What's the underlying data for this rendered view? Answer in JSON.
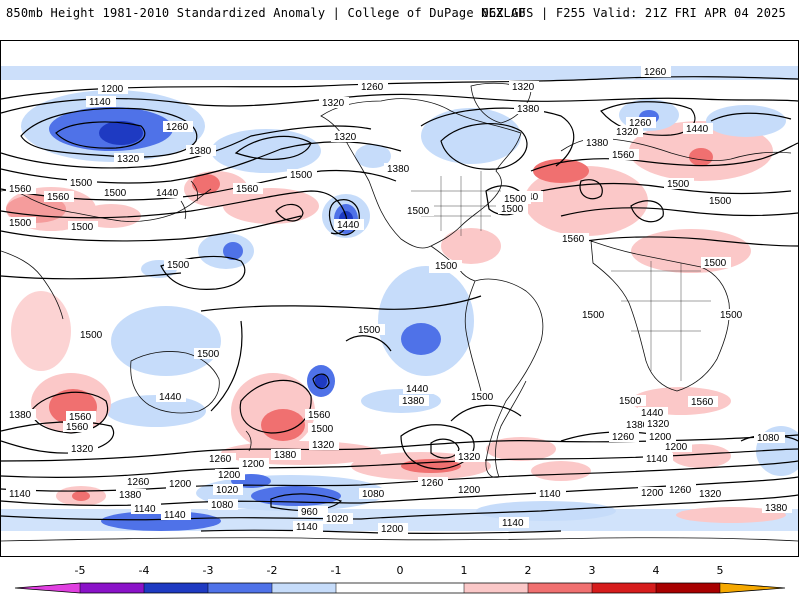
{
  "header": {
    "left_title": "850mb Height 1981-2010 Standardized Anomaly | College of DuPage NEXLAB",
    "right_title": "06Z GFS | F255 Valid: 21Z FRI APR 04 2025"
  },
  "map": {
    "projection": "global-cylindrical",
    "field": "850mb geopotential height (dam) contours with standardized anomaly shading",
    "contour_labels": [
      {
        "id": "c1",
        "text": "1200"
      },
      {
        "id": "c2",
        "text": "1140"
      },
      {
        "id": "c3",
        "text": "1260"
      },
      {
        "id": "c4",
        "text": "1320"
      },
      {
        "id": "c5",
        "text": "1320"
      },
      {
        "id": "c6",
        "text": "1380"
      },
      {
        "id": "c7",
        "text": "1260"
      },
      {
        "id": "c8",
        "text": "1320"
      },
      {
        "id": "c9",
        "text": "1380"
      },
      {
        "id": "c10",
        "text": "1260"
      },
      {
        "id": "c11",
        "text": "1320"
      },
      {
        "id": "c12",
        "text": "1260"
      },
      {
        "id": "c13",
        "text": "1440"
      },
      {
        "id": "c14",
        "text": "1380"
      },
      {
        "id": "c15",
        "text": "1560"
      },
      {
        "id": "c16",
        "text": "1500"
      },
      {
        "id": "c17",
        "text": "1440"
      },
      {
        "id": "c18",
        "text": "1560"
      },
      {
        "id": "c19",
        "text": "1500"
      },
      {
        "id": "c20",
        "text": "1440"
      },
      {
        "id": "c21",
        "text": "1500"
      },
      {
        "id": "c22",
        "text": "1500"
      },
      {
        "id": "c23",
        "text": "1440"
      },
      {
        "id": "c24",
        "text": "1560"
      },
      {
        "id": "c25",
        "text": "1500"
      },
      {
        "id": "c26",
        "text": "1500"
      },
      {
        "id": "c27",
        "text": "1560"
      },
      {
        "id": "c28",
        "text": "1500"
      },
      {
        "id": "c29",
        "text": "1500"
      },
      {
        "id": "c30",
        "text": "1500"
      },
      {
        "id": "c31",
        "text": "1500"
      },
      {
        "id": "c32",
        "text": "1500"
      },
      {
        "id": "c33",
        "text": "1500"
      },
      {
        "id": "c34",
        "text": "1500"
      },
      {
        "id": "c35",
        "text": "1500"
      },
      {
        "id": "c36",
        "text": "1500"
      },
      {
        "id": "c37",
        "text": "1500"
      },
      {
        "id": "c38",
        "text": "1560"
      },
      {
        "id": "c39",
        "text": "1380"
      },
      {
        "id": "c40",
        "text": "1320"
      },
      {
        "id": "c41",
        "text": "1440"
      },
      {
        "id": "c42",
        "text": "1560"
      },
      {
        "id": "c43",
        "text": "1500"
      },
      {
        "id": "c44",
        "text": "1380"
      },
      {
        "id": "c45",
        "text": "1320"
      },
      {
        "id": "c46",
        "text": "1260"
      },
      {
        "id": "c47",
        "text": "1200"
      },
      {
        "id": "c48",
        "text": "1440"
      },
      {
        "id": "c49",
        "text": "1380"
      },
      {
        "id": "c50",
        "text": "1500"
      },
      {
        "id": "c51",
        "text": "1320"
      },
      {
        "id": "c52",
        "text": "1260"
      },
      {
        "id": "c53",
        "text": "1200"
      },
      {
        "id": "c54",
        "text": "1500"
      },
      {
        "id": "c55",
        "text": "1440"
      },
      {
        "id": "c56",
        "text": "1380"
      },
      {
        "id": "c57",
        "text": "1320"
      },
      {
        "id": "c58",
        "text": "1260"
      },
      {
        "id": "c59",
        "text": "1200"
      },
      {
        "id": "c60",
        "text": "1560"
      },
      {
        "id": "c61",
        "text": "1140"
      },
      {
        "id": "c62",
        "text": "1080"
      },
      {
        "id": "c63",
        "text": "1140"
      },
      {
        "id": "c64",
        "text": "1260"
      },
      {
        "id": "c65",
        "text": "1200"
      },
      {
        "id": "c66",
        "text": "1140"
      },
      {
        "id": "c67",
        "text": "1380"
      },
      {
        "id": "c68",
        "text": "1140"
      },
      {
        "id": "c69",
        "text": "1200"
      },
      {
        "id": "c70",
        "text": "1020"
      },
      {
        "id": "c71",
        "text": "1080"
      },
      {
        "id": "c72",
        "text": "960"
      },
      {
        "id": "c73",
        "text": "1080"
      },
      {
        "id": "c74",
        "text": "1020"
      },
      {
        "id": "c75",
        "text": "1140"
      },
      {
        "id": "c76",
        "text": "1140"
      },
      {
        "id": "c77",
        "text": "1200"
      },
      {
        "id": "c78",
        "text": "1140"
      },
      {
        "id": "c79",
        "text": "1200"
      },
      {
        "id": "c80",
        "text": "1260"
      },
      {
        "id": "c81",
        "text": "1320"
      },
      {
        "id": "c82",
        "text": "1380"
      },
      {
        "id": "c83",
        "text": "1080"
      },
      {
        "id": "c84",
        "text": "1200"
      },
      {
        "id": "c85",
        "text": "1140"
      },
      {
        "id": "c86",
        "text": "1500"
      },
      {
        "id": "c87",
        "text": "1500"
      },
      {
        "id": "c88",
        "text": "1500"
      },
      {
        "id": "c89",
        "text": "1560"
      },
      {
        "id": "c90",
        "text": "1500"
      },
      {
        "id": "c91",
        "text": "1380"
      },
      {
        "id": "c92",
        "text": "1560"
      },
      {
        "id": "c93",
        "text": "1320"
      }
    ]
  },
  "colorbar": {
    "ticks": [
      "-5",
      "-4",
      "-3",
      "-2",
      "-1",
      "0",
      "1",
      "2",
      "3",
      "4",
      "5"
    ],
    "colors": {
      "neg5": "#e040e0",
      "neg4": "#8a12c8",
      "neg3": "#1e3ac2",
      "neg2": "#4f72e8",
      "neg1": "#c6dcfa",
      "zero": "#ffffff",
      "pos1": "#fbc8c8",
      "pos2": "#f07070",
      "pos3": "#d61c1c",
      "pos4": "#a80000",
      "pos5": "#f5a800"
    }
  }
}
